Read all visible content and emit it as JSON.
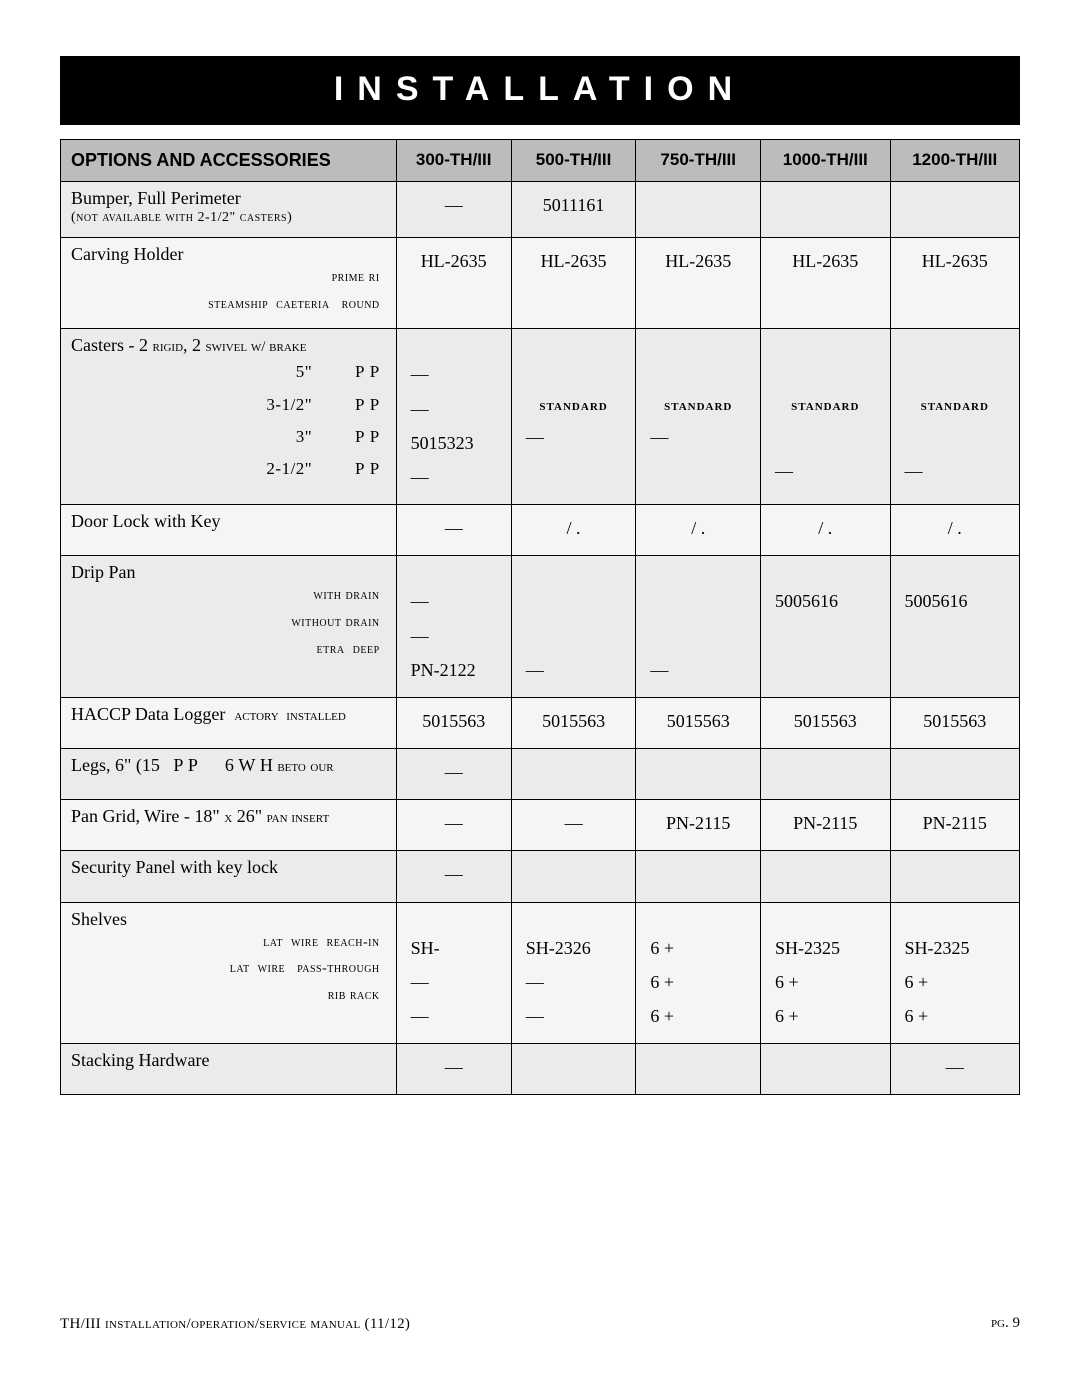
{
  "banner": "INSTALLATION",
  "header": {
    "options": "OPTIONS AND ACCESSORIES",
    "cols": [
      "300-TH/III",
      "500-TH/III",
      "750-TH/III",
      "1000-TH/III",
      "1200-TH/III"
    ]
  },
  "col_widths": [
    "35%",
    "12%",
    "13%",
    "13%",
    "13.5%",
    "13.5%"
  ],
  "rows": [
    {
      "label": "Bumper, Full Perimeter",
      "note": "(not available with 2-1/2\" casters)",
      "cells": [
        "—",
        "5011161",
        "",
        "",
        ""
      ]
    },
    {
      "label": "Carving Holder",
      "subs": [
        "prime ri",
        "steamship  caeteria   round"
      ],
      "cells": [
        "HL-2635",
        "HL-2635",
        "HL-2635",
        "HL-2635",
        "HL-2635"
      ]
    },
    {
      "label_html": "Casters - 2 <span style='font-variant:small-caps;font-size:15px'>rigid</span>, 2 <span style='font-variant:small-caps;font-size:15px'>swivel w/ brake</span>",
      "subs_plain": [
        "5\"         P P",
        "3-1/2\"         P P",
        "3\"         P P",
        "2-1/2\"         P P"
      ],
      "cell_lines": [
        [
          "—",
          "—",
          "5015323",
          "—"
        ],
        [
          "",
          "standard",
          "—",
          ""
        ],
        [
          "",
          "standard",
          "—",
          ""
        ],
        [
          "",
          "standard",
          "",
          "—"
        ],
        [
          "",
          "standard",
          "",
          "—"
        ]
      ]
    },
    {
      "label": "Door Lock with Key",
      "cells": [
        "—",
        "/ .",
        "/ .",
        "/ .",
        "/ ."
      ]
    },
    {
      "label": "Drip Pan",
      "subs": [
        "with drain",
        "without drain",
        "etra  deep"
      ],
      "cell_lines": [
        [
          "—",
          "—",
          "PN-2122"
        ],
        [
          "",
          "",
          "—"
        ],
        [
          "",
          "",
          "—"
        ],
        [
          "5005616",
          "",
          ""
        ],
        [
          "5005616",
          "",
          ""
        ]
      ]
    },
    {
      "label_html": "HACCP Data Logger  <span style='font-variant:small-caps;font-size:15px'>actory  installed</span>",
      "cells": [
        "5015563",
        "5015563",
        "5015563",
        "5015563",
        "5015563"
      ]
    },
    {
      "label_html": "Legs, 6\" (15   P P      6 W H <span style='font-variant:small-caps;font-size:15px'>beto</span> <span style='font-variant:small-caps;font-size:15px'>our</span>",
      "cells": [
        "—",
        "",
        "",
        "",
        ""
      ]
    },
    {
      "label_html": "Pan Grid, Wire - 18\" <span style='font-variant:small-caps;font-size:15px'>x</span> 26\" <span style='font-variant:small-caps;font-size:15px'>pan insert</span>",
      "cells": [
        "—",
        "—",
        "PN-2115",
        "PN-2115",
        "PN-2115"
      ]
    },
    {
      "label": "Security Panel with key lock",
      "cells": [
        "—",
        "",
        "",
        "",
        ""
      ]
    },
    {
      "label": "Shelves",
      "subs": [
        "lat  wire  reach-in",
        "lat  wire   pass-through",
        "rib rack"
      ],
      "cell_lines": [
        [
          "SH-",
          "—",
          "—"
        ],
        [
          "SH-2326",
          "—",
          "—"
        ],
        [
          "6 +",
          "6 +",
          "6 +"
        ],
        [
          "SH-2325",
          "6 +",
          "6 +"
        ],
        [
          "SH-2325",
          "6 +",
          "6 +"
        ]
      ]
    },
    {
      "label": "Stacking Hardware",
      "cells": [
        "—",
        "",
        "",
        "",
        "—"
      ]
    }
  ],
  "footer": {
    "left_pre": "TH/III ",
    "left_sc": "installation/operation/service manual",
    "left_post": " (11/12)",
    "right_sc": "pg.",
    "right_num": " 9"
  }
}
